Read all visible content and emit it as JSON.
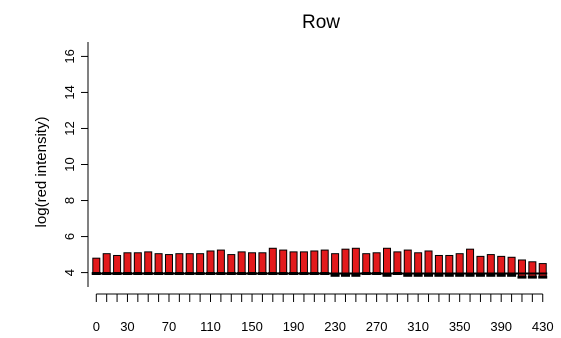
{
  "chart_data": {
    "type": "bar",
    "title": "Row",
    "xlabel": "",
    "ylabel": "log(red intensity)",
    "ylim": [
      3.2,
      16.8
    ],
    "y_ticks": [
      4,
      6,
      8,
      10,
      12,
      14,
      16
    ],
    "y_tick_labels": [
      "4",
      "6",
      "8",
      "10",
      "12",
      "14",
      "16"
    ],
    "x_tick_labels": [
      "0",
      "30",
      "70",
      "110",
      "150",
      "190",
      "230",
      "270",
      "310",
      "350",
      "390",
      "430"
    ],
    "x_tick_label_positions": [
      0,
      30,
      70,
      110,
      150,
      190,
      230,
      270,
      310,
      350,
      390,
      430
    ],
    "x_ticks": [
      0,
      10,
      20,
      30,
      40,
      50,
      60,
      70,
      80,
      90,
      100,
      110,
      120,
      130,
      140,
      150,
      160,
      170,
      180,
      190,
      200,
      210,
      220,
      230,
      240,
      250,
      260,
      270,
      280,
      290,
      300,
      310,
      320,
      330,
      340,
      350,
      360,
      370,
      380,
      390,
      400,
      410,
      420,
      430
    ],
    "xlim": [
      -8,
      437
    ],
    "categories": [
      0,
      10,
      20,
      30,
      40,
      50,
      60,
      70,
      80,
      90,
      100,
      110,
      120,
      130,
      140,
      150,
      160,
      170,
      180,
      190,
      200,
      210,
      220,
      230,
      240,
      250,
      260,
      270,
      280,
      290,
      300,
      310,
      320,
      330,
      340,
      350,
      360,
      370,
      380,
      390,
      400,
      410,
      420,
      430
    ],
    "bar_base": [
      3.95,
      3.95,
      3.95,
      3.95,
      3.95,
      3.95,
      3.95,
      3.95,
      3.95,
      3.95,
      3.95,
      3.95,
      3.95,
      3.95,
      3.95,
      3.95,
      3.95,
      3.95,
      3.95,
      3.95,
      3.95,
      3.95,
      3.95,
      3.85,
      3.85,
      3.85,
      3.95,
      3.95,
      3.85,
      3.95,
      3.85,
      3.85,
      3.85,
      3.85,
      3.85,
      3.85,
      3.85,
      3.85,
      3.85,
      3.85,
      3.85,
      3.75,
      3.75,
      3.75
    ],
    "bar_top": [
      4.8,
      5.05,
      4.95,
      5.1,
      5.1,
      5.15,
      5.05,
      5.0,
      5.05,
      5.05,
      5.05,
      5.2,
      5.25,
      5.0,
      5.15,
      5.1,
      5.1,
      5.35,
      5.25,
      5.15,
      5.15,
      5.2,
      5.25,
      5.05,
      5.3,
      5.35,
      5.05,
      5.1,
      5.35,
      5.15,
      5.25,
      5.1,
      5.2,
      4.95,
      4.95,
      5.05,
      5.3,
      4.9,
      5.0,
      4.9,
      4.85,
      4.7,
      4.6,
      4.5
    ],
    "bar_width": 7,
    "bar_color": "#e31a1c",
    "bar_edge_color": "#000000",
    "outlier_color": "#000000",
    "grid": false,
    "frame": "left-and-bottom axes"
  }
}
